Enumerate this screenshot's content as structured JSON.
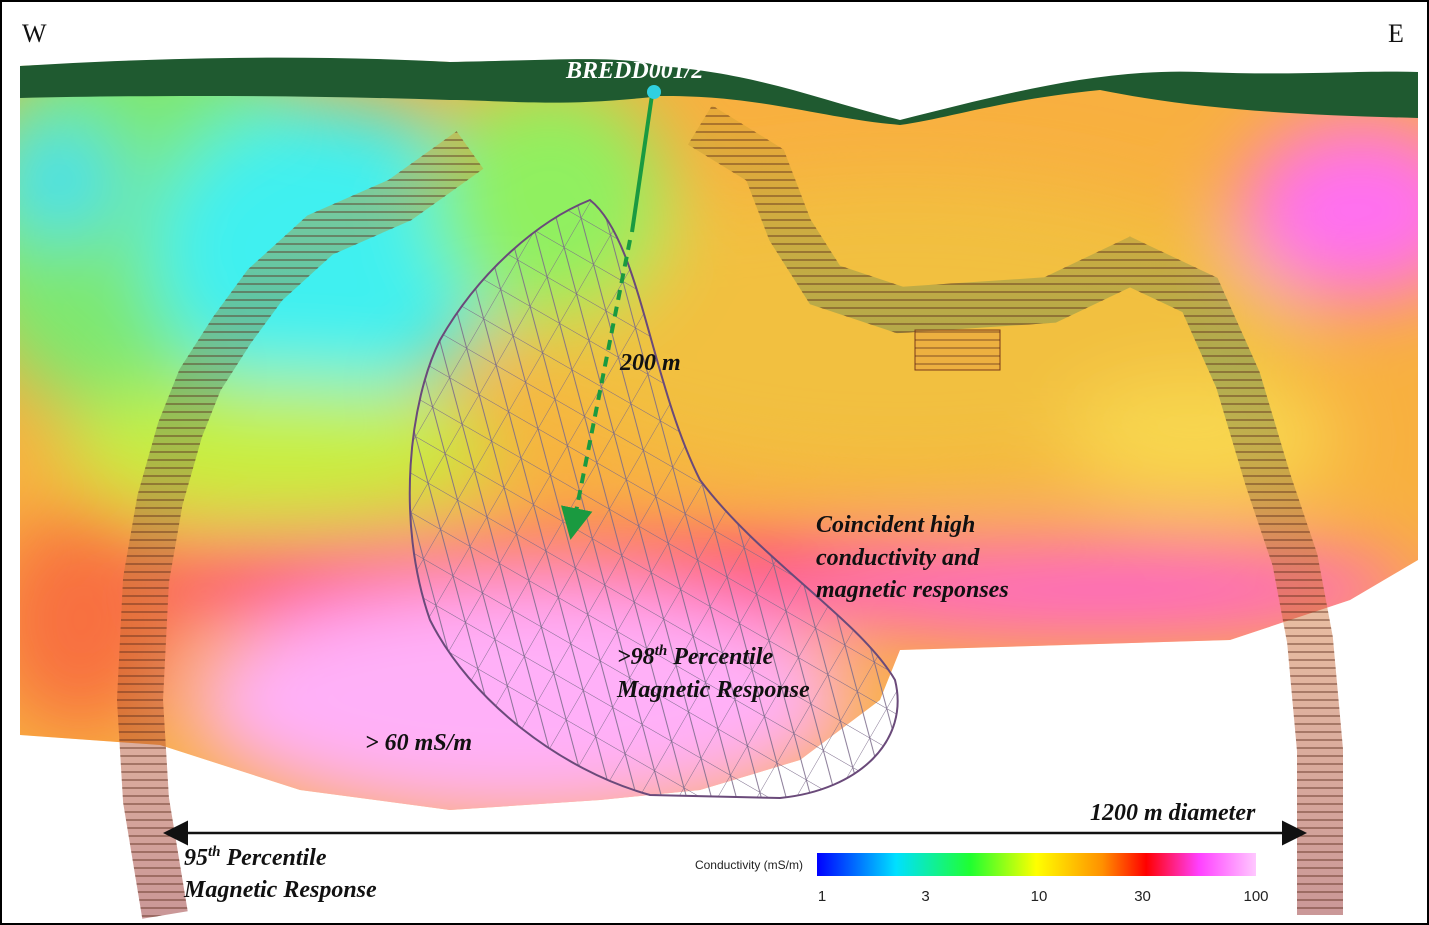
{
  "header": {
    "west": "W",
    "east": "E"
  },
  "drillhole": {
    "name": "BREDD001/2",
    "depth_label": "200 m"
  },
  "annotations": {
    "coincident": [
      "Coincident high",
      "conductivity and",
      "magnetic responses"
    ],
    "percentile_98": {
      "prefix": ">98",
      "sup": "th",
      "rest": " Percentile",
      "line2": "Magnetic Response"
    },
    "conductivity": "> 60 mS/m",
    "diameter": "1200 m diameter",
    "percentile_95": {
      "prefix": "95",
      "sup": "th",
      "rest": " Percentile",
      "line2": "Magnetic Response"
    }
  },
  "colorbar": {
    "title": "Conductivity (mS/m)",
    "ticks": [
      1,
      3,
      10,
      30,
      100
    ]
  }
}
